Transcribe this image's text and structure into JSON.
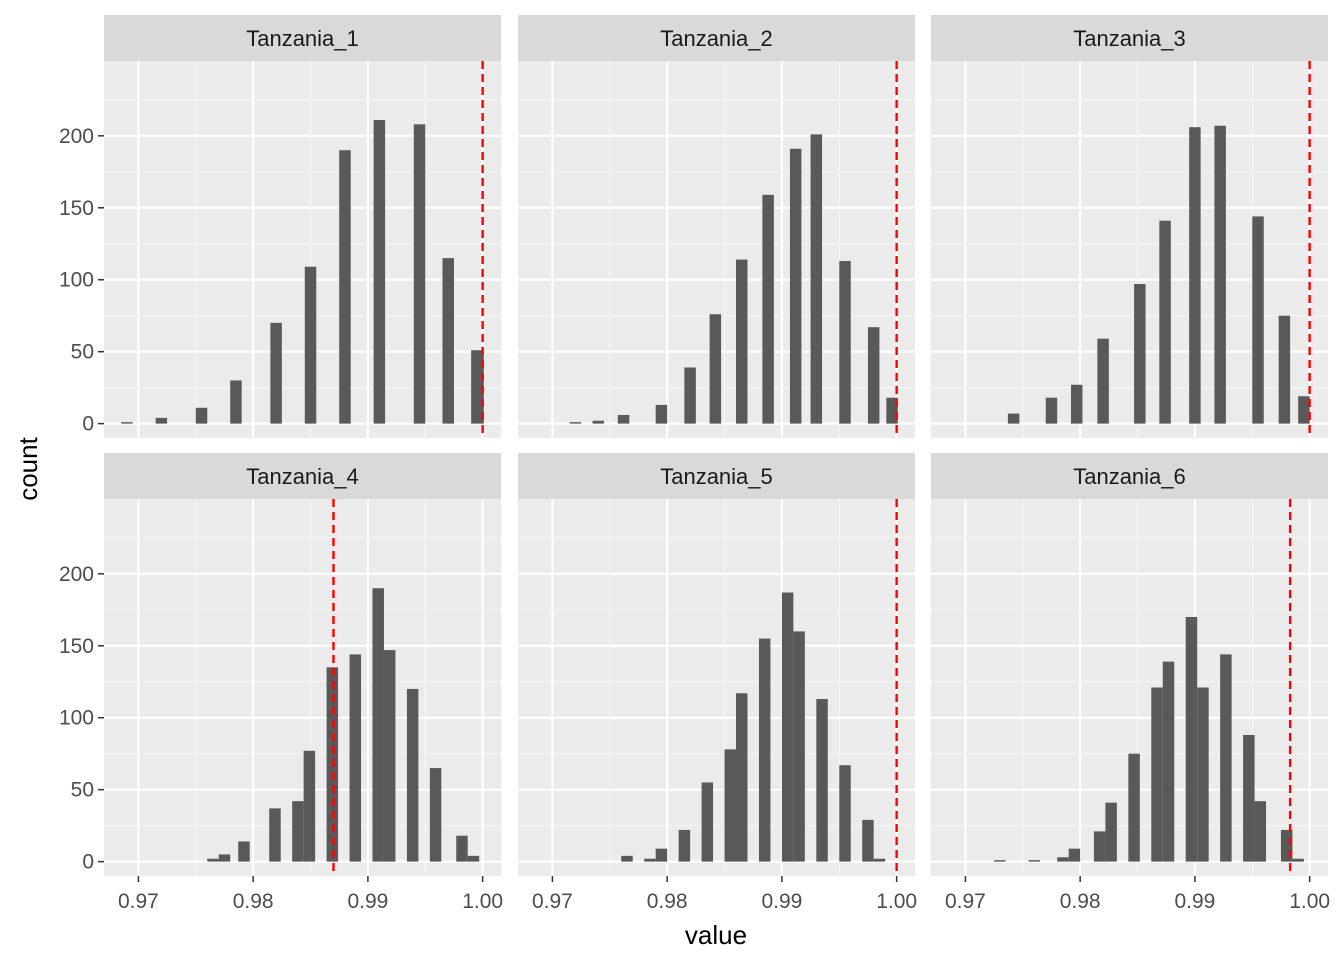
{
  "chart_data": {
    "type": "bar",
    "subtype": "faceted histogram",
    "xlabel": "value",
    "ylabel": "count",
    "xlim": [
      0.967,
      1.0016
    ],
    "ylim": [
      -10,
      252
    ],
    "x_ticks": [
      0.97,
      0.98,
      0.99,
      1.0
    ],
    "x_tick_labels": [
      "0.97",
      "0.98",
      "0.99",
      "1.00"
    ],
    "y_ticks": [
      0,
      50,
      100,
      150,
      200
    ],
    "y_tick_labels": [
      "0",
      "50",
      "100",
      "150",
      "200"
    ],
    "grid": true,
    "bar_color": "#595959",
    "reference_line_color": "#ff0000",
    "panel_background": "#ebebeb",
    "strip_background": "#d9d9d9",
    "facets": [
      {
        "label": "Tanzania_1",
        "reference_line": 1.0,
        "bins": [
          {
            "x0": 0.9685,
            "x1": 0.9695,
            "count": 1
          },
          {
            "x0": 0.9715,
            "x1": 0.9725,
            "count": 4
          },
          {
            "x0": 0.975,
            "x1": 0.976,
            "count": 11
          },
          {
            "x0": 0.978,
            "x1": 0.979,
            "count": 30
          },
          {
            "x0": 0.9815,
            "x1": 0.9825,
            "count": 70
          },
          {
            "x0": 0.9845,
            "x1": 0.9855,
            "count": 109
          },
          {
            "x0": 0.9875,
            "x1": 0.9885,
            "count": 190
          },
          {
            "x0": 0.9905,
            "x1": 0.9915,
            "count": 211
          },
          {
            "x0": 0.994,
            "x1": 0.995,
            "count": 208
          },
          {
            "x0": 0.9965,
            "x1": 0.9975,
            "count": 115
          },
          {
            "x0": 0.999,
            "x1": 1.0001,
            "count": 51
          }
        ]
      },
      {
        "label": "Tanzania_2",
        "reference_line": 1.0,
        "bins": [
          {
            "x0": 0.9715,
            "x1": 0.9725,
            "count": 1
          },
          {
            "x0": 0.9735,
            "x1": 0.9745,
            "count": 2
          },
          {
            "x0": 0.9757,
            "x1": 0.9767,
            "count": 6
          },
          {
            "x0": 0.979,
            "x1": 0.98,
            "count": 13
          },
          {
            "x0": 0.9815,
            "x1": 0.9825,
            "count": 39
          },
          {
            "x0": 0.9837,
            "x1": 0.9847,
            "count": 76
          },
          {
            "x0": 0.986,
            "x1": 0.987,
            "count": 114
          },
          {
            "x0": 0.9883,
            "x1": 0.9893,
            "count": 159
          },
          {
            "x0": 0.9907,
            "x1": 0.9917,
            "count": 191
          },
          {
            "x0": 0.9925,
            "x1": 0.9935,
            "count": 201
          },
          {
            "x0": 0.995,
            "x1": 0.996,
            "count": 113
          },
          {
            "x0": 0.9975,
            "x1": 0.9985,
            "count": 67
          },
          {
            "x0": 0.9991,
            "x1": 1.0001,
            "count": 18
          }
        ]
      },
      {
        "label": "Tanzania_3",
        "reference_line": 1.0,
        "bins": [
          {
            "x0": 0.9737,
            "x1": 0.9747,
            "count": 7
          },
          {
            "x0": 0.977,
            "x1": 0.978,
            "count": 18
          },
          {
            "x0": 0.9792,
            "x1": 0.9802,
            "count": 27
          },
          {
            "x0": 0.9815,
            "x1": 0.9825,
            "count": 59
          },
          {
            "x0": 0.9847,
            "x1": 0.9857,
            "count": 97
          },
          {
            "x0": 0.9869,
            "x1": 0.9879,
            "count": 141
          },
          {
            "x0": 0.9895,
            "x1": 0.9905,
            "count": 206
          },
          {
            "x0": 0.9917,
            "x1": 0.9927,
            "count": 207
          },
          {
            "x0": 0.995,
            "x1": 0.996,
            "count": 144
          },
          {
            "x0": 0.9973,
            "x1": 0.9983,
            "count": 75
          },
          {
            "x0": 0.999,
            "x1": 1.0,
            "count": 19
          }
        ]
      },
      {
        "label": "Tanzania_4",
        "reference_line": 0.987,
        "bins": [
          {
            "x0": 0.976,
            "x1": 0.977,
            "count": 2
          },
          {
            "x0": 0.977,
            "x1": 0.978,
            "count": 5
          },
          {
            "x0": 0.9787,
            "x1": 0.9797,
            "count": 14
          },
          {
            "x0": 0.9814,
            "x1": 0.9824,
            "count": 37
          },
          {
            "x0": 0.9834,
            "x1": 0.9844,
            "count": 42
          },
          {
            "x0": 0.9844,
            "x1": 0.9854,
            "count": 77
          },
          {
            "x0": 0.9864,
            "x1": 0.9874,
            "count": 135
          },
          {
            "x0": 0.9884,
            "x1": 0.9894,
            "count": 144
          },
          {
            "x0": 0.9904,
            "x1": 0.9914,
            "count": 190
          },
          {
            "x0": 0.9914,
            "x1": 0.9924,
            "count": 147
          },
          {
            "x0": 0.9934,
            "x1": 0.9944,
            "count": 120
          },
          {
            "x0": 0.9954,
            "x1": 0.9964,
            "count": 65
          },
          {
            "x0": 0.9977,
            "x1": 0.9987,
            "count": 18
          },
          {
            "x0": 0.9987,
            "x1": 0.9997,
            "count": 4
          }
        ]
      },
      {
        "label": "Tanzania_5",
        "reference_line": 1.0,
        "bins": [
          {
            "x0": 0.976,
            "x1": 0.977,
            "count": 4
          },
          {
            "x0": 0.978,
            "x1": 0.979,
            "count": 2
          },
          {
            "x0": 0.979,
            "x1": 0.98,
            "count": 9
          },
          {
            "x0": 0.981,
            "x1": 0.982,
            "count": 22
          },
          {
            "x0": 0.983,
            "x1": 0.984,
            "count": 55
          },
          {
            "x0": 0.985,
            "x1": 0.986,
            "count": 78
          },
          {
            "x0": 0.986,
            "x1": 0.987,
            "count": 117
          },
          {
            "x0": 0.988,
            "x1": 0.989,
            "count": 155
          },
          {
            "x0": 0.99,
            "x1": 0.991,
            "count": 187
          },
          {
            "x0": 0.991,
            "x1": 0.992,
            "count": 160
          },
          {
            "x0": 0.993,
            "x1": 0.994,
            "count": 113
          },
          {
            "x0": 0.995,
            "x1": 0.996,
            "count": 67
          },
          {
            "x0": 0.997,
            "x1": 0.998,
            "count": 29
          },
          {
            "x0": 0.998,
            "x1": 0.999,
            "count": 2
          }
        ]
      },
      {
        "label": "Tanzania_6",
        "reference_line": 0.9983,
        "bins": [
          {
            "x0": 0.9725,
            "x1": 0.9735,
            "count": 1
          },
          {
            "x0": 0.9755,
            "x1": 0.9765,
            "count": 1
          },
          {
            "x0": 0.978,
            "x1": 0.979,
            "count": 3
          },
          {
            "x0": 0.979,
            "x1": 0.98,
            "count": 9
          },
          {
            "x0": 0.9812,
            "x1": 0.9822,
            "count": 21
          },
          {
            "x0": 0.9822,
            "x1": 0.9832,
            "count": 41
          },
          {
            "x0": 0.9842,
            "x1": 0.9852,
            "count": 75
          },
          {
            "x0": 0.9862,
            "x1": 0.9872,
            "count": 121
          },
          {
            "x0": 0.9872,
            "x1": 0.9882,
            "count": 139
          },
          {
            "x0": 0.9892,
            "x1": 0.9902,
            "count": 170
          },
          {
            "x0": 0.9902,
            "x1": 0.9912,
            "count": 121
          },
          {
            "x0": 0.9922,
            "x1": 0.9932,
            "count": 144
          },
          {
            "x0": 0.9942,
            "x1": 0.9952,
            "count": 88
          },
          {
            "x0": 0.9952,
            "x1": 0.9962,
            "count": 42
          },
          {
            "x0": 0.9975,
            "x1": 0.9985,
            "count": 22
          },
          {
            "x0": 0.9985,
            "x1": 0.9995,
            "count": 2
          }
        ]
      }
    ]
  }
}
